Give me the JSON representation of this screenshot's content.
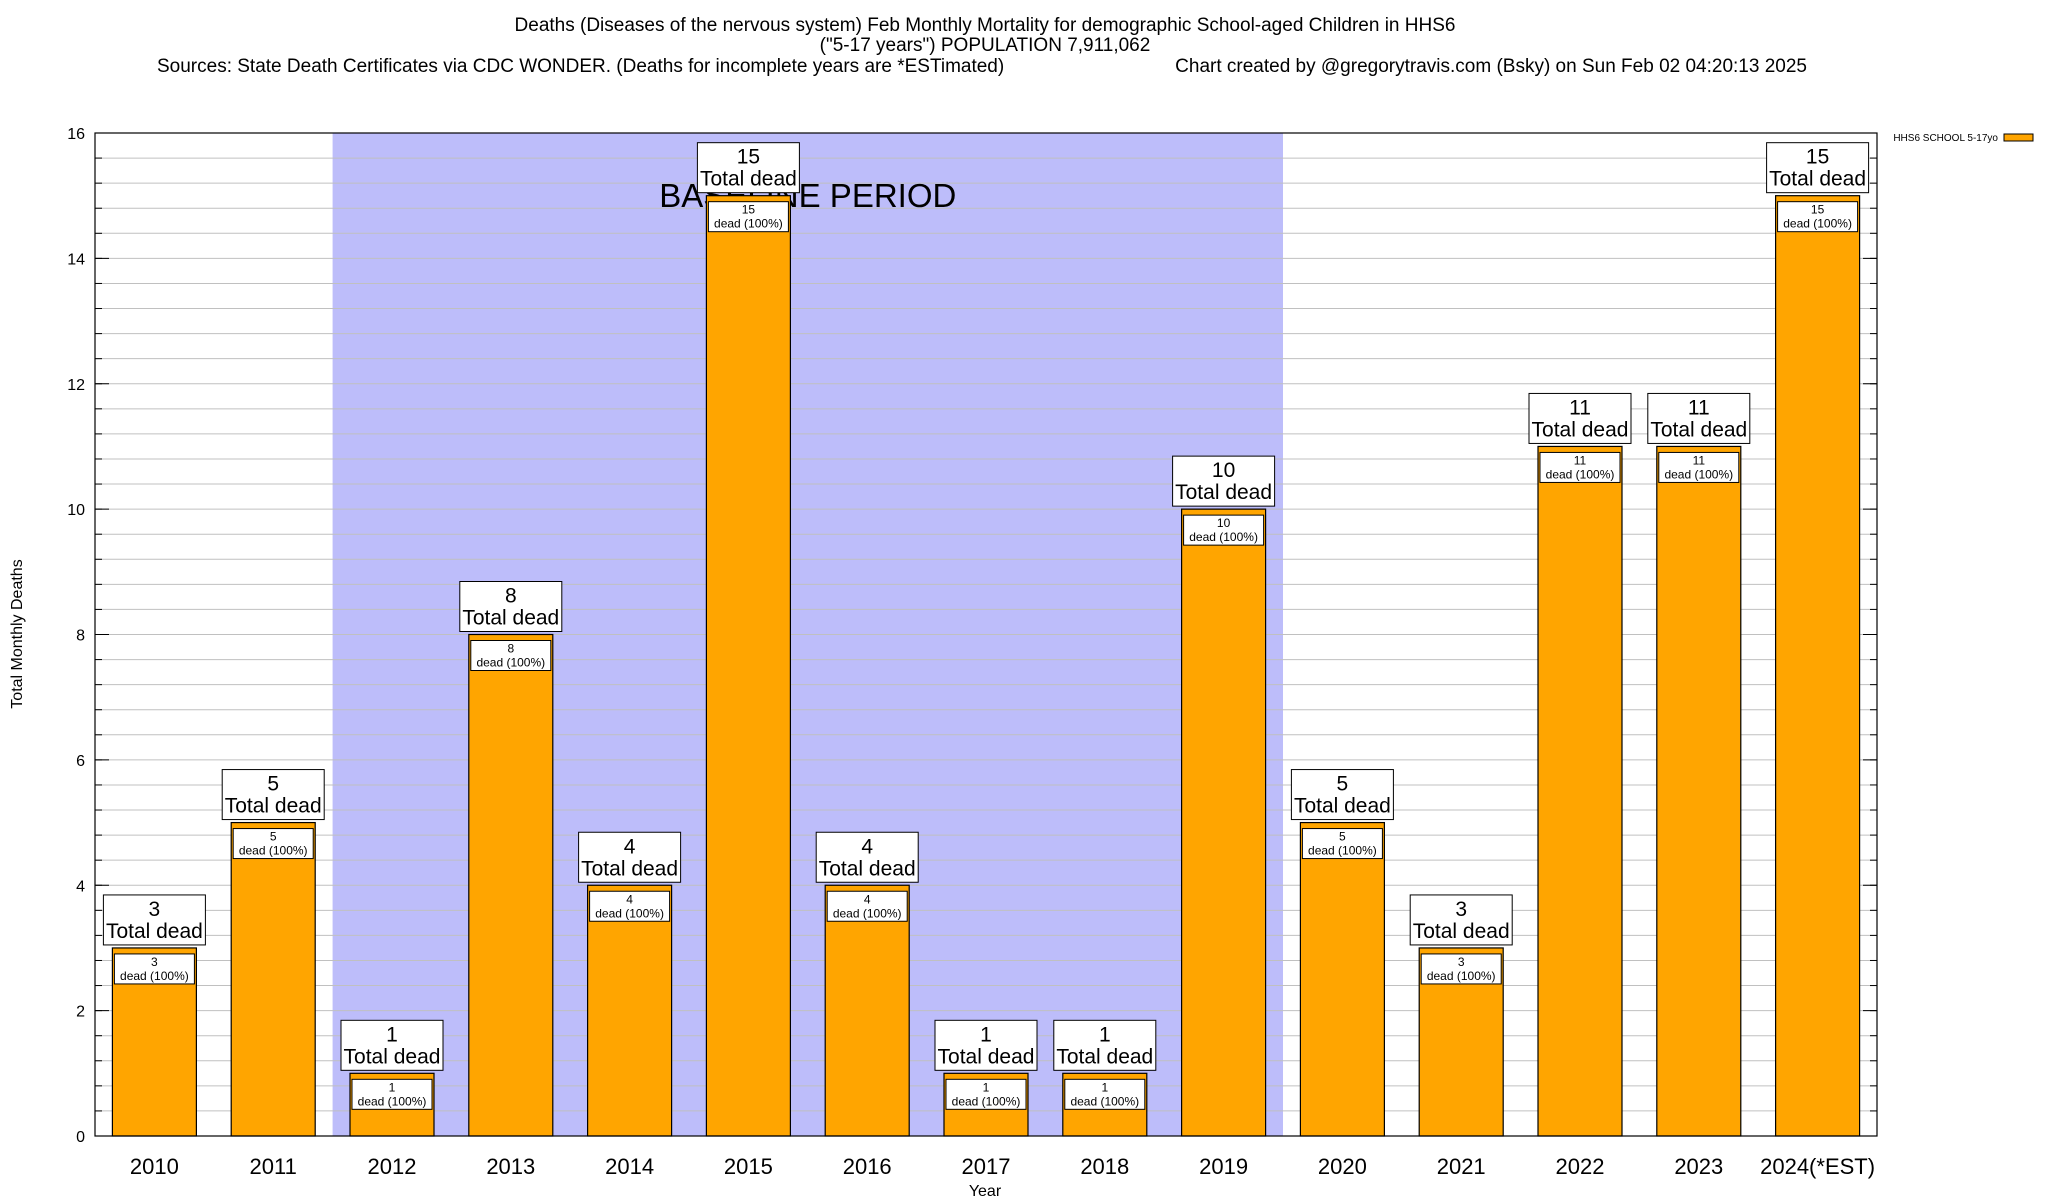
{
  "header": {
    "line1": "Deaths (Diseases of the nervous system) Feb Monthly Mortality for demographic School-aged Children in HHS6",
    "line2": "(\"5-17 years\") POPULATION 7,911,062",
    "sources": "Sources: State Death Certificates via CDC WONDER. (Deaths for incomplete years are *ESTimated)",
    "credit": "Chart created by @gregorytravis.com (Bsky) on Sun Feb 02 04:20:13 2025"
  },
  "colors": {
    "bar": "#ffa500",
    "baseline_band": "#bdbdfa",
    "grid": "#c0c0c0",
    "axis": "#000000"
  },
  "chart_data": {
    "type": "bar",
    "title": "Deaths (Diseases of the nervous system) Feb Monthly Mortality for demographic School-aged Children in HHS6",
    "xlabel": "Year",
    "ylabel": "Total Monthly Deaths",
    "ylim": [
      0,
      16
    ],
    "yticks": [
      0,
      2,
      4,
      6,
      8,
      10,
      12,
      14,
      16
    ],
    "minor_tick_step": 0.4,
    "grid": true,
    "legend": {
      "position": "top-right",
      "entries": [
        "HHS6 SCHOOL 5-17yo"
      ]
    },
    "categories": [
      "2010",
      "2011",
      "2012",
      "2013",
      "2014",
      "2015",
      "2016",
      "2017",
      "2018",
      "2019",
      "2020",
      "2021",
      "2022",
      "2023",
      "2024(*EST)"
    ],
    "series": [
      {
        "name": "HHS6 SCHOOL 5-17yo",
        "values": [
          3,
          5,
          1,
          8,
          4,
          15,
          4,
          1,
          1,
          10,
          5,
          3,
          11,
          11,
          15
        ]
      }
    ],
    "total_label_suffix": "Total dead",
    "segment_label_suffix": "dead (100%)",
    "baseline_period": {
      "label": "BASELINE PERIOD",
      "start": "2012",
      "end": "2019"
    }
  }
}
